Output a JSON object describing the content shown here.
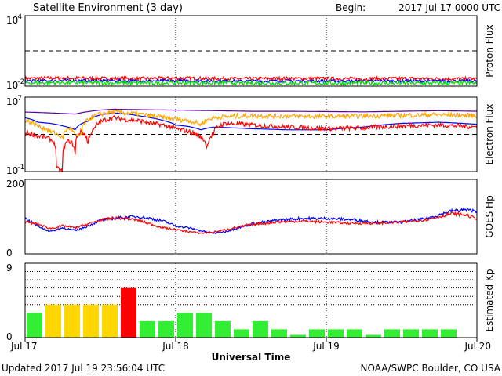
{
  "header": {
    "title": "Satellite Environment (3 day)",
    "begin_label": "Begin:",
    "begin_value": "2017 Jul 17 0000 UTC"
  },
  "footer": {
    "updated": "Updated 2017 Jul 19 23:56:04 UTC",
    "credit": "NOAA/SWPC Boulder, CO USA"
  },
  "colors": {
    "red": "#ff0000",
    "blue": "#0000ff",
    "green": "#00dd00",
    "orange": "#ffa500",
    "kp_green": "#33ee33",
    "kp_yellow": "#ffd700",
    "kp_red": "#ff0000"
  },
  "chart_data": [
    {
      "id": "proton",
      "type": "line",
      "ylabel": "Proton Flux",
      "yscale": "log",
      "ylim": [
        0.01,
        10000
      ],
      "yticks": [
        "10",
        "10"
      ],
      "yticks_exp": [
        "4",
        "-2"
      ],
      "threshold": 10,
      "x_unit": "hours since 2017 Jul 17 0000 UTC",
      "series": [
        {
          "color": "#ff0000",
          "x": [
            0,
            6,
            12,
            18,
            24,
            30,
            36,
            42,
            48,
            54,
            60,
            66,
            72
          ],
          "y": [
            0.045,
            0.05,
            0.046,
            0.044,
            0.048,
            0.045,
            0.043,
            0.046,
            0.044,
            0.042,
            0.045,
            0.043,
            0.042
          ],
          "noise": 0.15
        },
        {
          "color": "#0000ff",
          "x": [
            0,
            6,
            12,
            18,
            24,
            30,
            36,
            42,
            48,
            54,
            60,
            66,
            72
          ],
          "y": [
            0.028,
            0.03,
            0.029,
            0.028,
            0.029,
            0.028,
            0.027,
            0.028,
            0.027,
            0.027,
            0.028,
            0.027,
            0.027
          ],
          "noise": 0.12
        },
        {
          "color": "#00dd00",
          "x": [
            0,
            6,
            12,
            18,
            24,
            30,
            36,
            42,
            48,
            54,
            60,
            66,
            72
          ],
          "y": [
            0.019,
            0.02,
            0.019,
            0.018,
            0.019,
            0.019,
            0.018,
            0.018,
            0.018,
            0.018,
            0.018,
            0.018,
            0.018
          ],
          "noise": 0.16
        }
      ]
    },
    {
      "id": "electron",
      "type": "line",
      "ylabel": "Electron Flux",
      "yscale": "log",
      "ylim": [
        0.1,
        10000000
      ],
      "yticks": [
        "10",
        "10"
      ],
      "yticks_exp": [
        "7",
        "-1"
      ],
      "threshold": 1000,
      "x_unit": "hours since 2017 Jul 17 0000 UTC",
      "series": [
        {
          "color": "#0000ff",
          "x": [
            0,
            2,
            4,
            6,
            8,
            10,
            12,
            14,
            16,
            18,
            20,
            22,
            24,
            26,
            28,
            30,
            36,
            42,
            48,
            54,
            60,
            66,
            72
          ],
          "y": [
            60000,
            20000,
            15000,
            8000,
            3000,
            25000,
            120000,
            200000,
            160000,
            100000,
            60000,
            30000,
            10000,
            7000,
            3000,
            6000,
            4000,
            3000,
            3000,
            6000,
            15000,
            20000,
            12000
          ],
          "noise": 0
        },
        {
          "color": "#ff0000",
          "x": [
            0,
            2,
            4,
            5,
            6,
            7,
            8,
            9,
            10,
            11,
            12,
            14,
            16,
            18,
            20,
            22,
            24,
            26,
            28,
            29,
            30,
            31,
            32,
            36,
            42,
            48,
            54,
            60,
            66,
            72
          ],
          "y": [
            1500,
            700,
            300,
            0.2,
            0.1,
            200,
            0.1,
            2000,
            0.1,
            3000,
            20000,
            60000,
            40000,
            30000,
            15000,
            10000,
            4000,
            2000,
            500,
            0.1,
            1000,
            8000,
            15000,
            10000,
            6000,
            4000,
            5000,
            8000,
            10000,
            6000
          ],
          "noise": 0.25
        },
        {
          "color": "#ffa500",
          "x": [
            0,
            2,
            4,
            6,
            7,
            8,
            9,
            10,
            12,
            14,
            16,
            18,
            20,
            22,
            24,
            26,
            28,
            30,
            32,
            36,
            42,
            48,
            54,
            60,
            66,
            72
          ],
          "y": [
            30000,
            8000,
            2000,
            300,
            5000,
            500,
            1000,
            30000,
            150000,
            250000,
            200000,
            150000,
            100000,
            60000,
            40000,
            30000,
            10000,
            60000,
            80000,
            100000,
            90000,
            80000,
            90000,
            110000,
            130000,
            100000
          ],
          "noise": 0.25
        },
        {
          "color": "#5a00a0",
          "x": [
            0,
            4,
            8,
            12,
            14,
            18,
            24,
            30,
            36,
            42,
            48,
            54,
            60,
            66,
            72
          ],
          "y": [
            250000,
            200000,
            150000,
            400000,
            500000,
            450000,
            400000,
            350000,
            300000,
            300000,
            280000,
            260000,
            300000,
            350000,
            300000
          ],
          "noise": 0
        }
      ]
    },
    {
      "id": "goes-hp",
      "type": "line",
      "ylabel": "GOES Hp",
      "ylim": [
        0,
        200
      ],
      "yticks": [
        "200",
        "0"
      ],
      "x_unit": "hours since 2017 Jul 17 0000 UTC",
      "series": [
        {
          "color": "#0000ff",
          "x": [
            0,
            2,
            4,
            6,
            8,
            10,
            12,
            14,
            16,
            18,
            20,
            22,
            24,
            26,
            28,
            30,
            32,
            34,
            36,
            40,
            44,
            48,
            52,
            56,
            60,
            64,
            66,
            68,
            70,
            72
          ],
          "y": [
            95,
            75,
            60,
            70,
            62,
            75,
            90,
            95,
            98,
            100,
            95,
            88,
            75,
            70,
            62,
            55,
            60,
            70,
            80,
            90,
            95,
            95,
            92,
            85,
            85,
            95,
            105,
            115,
            118,
            115
          ],
          "noise": 0.04
        },
        {
          "color": "#ff0000",
          "x": [
            0,
            2,
            4,
            6,
            8,
            10,
            12,
            14,
            16,
            18,
            20,
            22,
            24,
            26,
            28,
            30,
            32,
            34,
            36,
            40,
            44,
            48,
            52,
            56,
            60,
            64,
            66,
            68,
            70,
            72
          ],
          "y": [
            85,
            80,
            68,
            75,
            70,
            80,
            90,
            96,
            95,
            90,
            80,
            70,
            65,
            60,
            55,
            58,
            65,
            72,
            78,
            85,
            88,
            85,
            82,
            82,
            85,
            92,
            100,
            108,
            105,
            95
          ],
          "noise": 0.04
        }
      ]
    },
    {
      "id": "kp",
      "type": "bar",
      "ylabel": "Estimated Kp",
      "ylim": [
        0,
        9
      ],
      "yticks": [
        "9",
        "0"
      ],
      "thresholds": [
        4,
        5,
        6,
        7,
        8
      ],
      "x_unit": "hours since 2017 Jul 17 0000 UTC",
      "bar_hours": 3,
      "values": [
        3,
        4,
        4,
        4,
        4,
        6,
        2,
        2,
        3,
        3,
        2,
        1,
        2,
        1,
        0.33,
        1,
        1,
        1,
        0.33,
        1,
        1,
        1,
        1
      ],
      "colors": [
        "#33ee33",
        "#ffd700",
        "#ffd700",
        "#ffd700",
        "#ffd700",
        "#ff0000",
        "#33ee33",
        "#33ee33",
        "#33ee33",
        "#33ee33",
        "#33ee33",
        "#33ee33",
        "#33ee33",
        "#33ee33",
        "#33ee33",
        "#33ee33",
        "#33ee33",
        "#33ee33",
        "#33ee33",
        "#33ee33",
        "#33ee33",
        "#33ee33",
        "#33ee33"
      ]
    }
  ],
  "xaxis": {
    "title": "Universal Time",
    "tick_labels": [
      "Jul 17",
      "Jul 18",
      "Jul 19",
      "Jul 20"
    ],
    "tick_hours": [
      0,
      24,
      48,
      72
    ]
  }
}
